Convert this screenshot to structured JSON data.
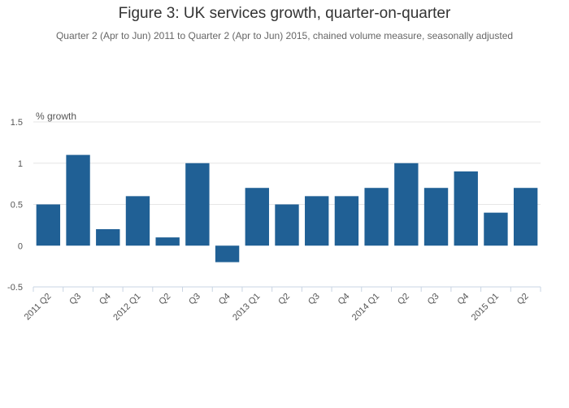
{
  "chart_data": {
    "type": "bar",
    "title": "Figure 3: UK services growth, quarter-on-quarter",
    "subtitle": "Quarter 2 (Apr to Jun) 2011 to Quarter 2 (Apr to Jun) 2015, chained volume measure, seasonally adjusted",
    "ylabel": "% growth",
    "xlabel": "",
    "categories": [
      "2011 Q2",
      "Q3",
      "Q4",
      "2012 Q1",
      "Q2",
      "Q3",
      "Q4",
      "2013 Q1",
      "Q2",
      "Q3",
      "Q4",
      "2014 Q1",
      "Q2",
      "Q3",
      "Q4",
      "2015 Q1",
      "Q2"
    ],
    "values": [
      0.5,
      1.1,
      0.2,
      0.6,
      0.1,
      1.0,
      -0.2,
      0.7,
      0.5,
      0.6,
      0.6,
      0.7,
      1.0,
      0.7,
      0.9,
      0.4,
      0.7
    ],
    "ylim": [
      -0.5,
      1.5
    ],
    "yticks": [
      1.5,
      1,
      0.5,
      0,
      -0.5
    ],
    "ytick_labels": [
      "1.5",
      "1",
      "0.5",
      "0",
      "-0.5"
    ],
    "grid": true,
    "bar_color": "#206095",
    "grid_color": "#e6e6e6",
    "axis_color": "#c8d4e3"
  }
}
